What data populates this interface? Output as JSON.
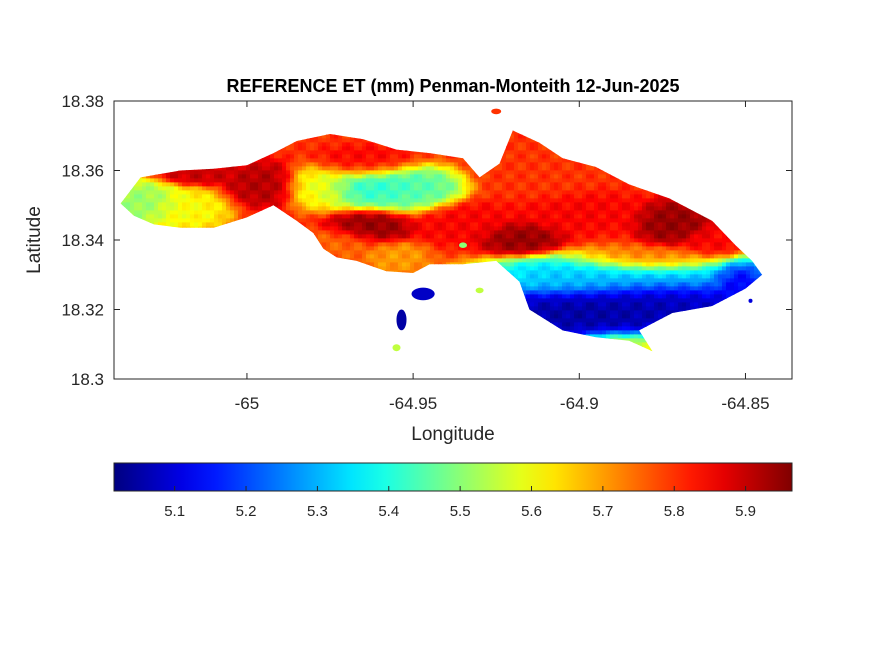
{
  "chart_data": {
    "type": "heatmap",
    "title": "REFERENCE ET (mm) Penman-Monteith 12-Jun-2025",
    "xlabel": "Longitude",
    "ylabel": "Latitude",
    "xlim": [
      -65.04,
      -64.836
    ],
    "ylim": [
      18.3,
      18.38
    ],
    "xticks": [
      -65,
      -64.95,
      -64.9,
      -64.85
    ],
    "xtick_labels": [
      "-65",
      "-64.95",
      "-64.9",
      "-64.85"
    ],
    "yticks": [
      18.3,
      18.32,
      18.34,
      18.36,
      18.38
    ],
    "ytick_labels": [
      "18.3",
      "18.32",
      "18.34",
      "18.36",
      "18.38"
    ],
    "colormap": "jet",
    "colorbar": {
      "orientation": "horizontal",
      "location": "below",
      "clim": [
        5.015,
        5.965
      ],
      "ticks": [
        5.1,
        5.2,
        5.3,
        5.4,
        5.5,
        5.6,
        5.7,
        5.8,
        5.9
      ],
      "tick_labels": [
        "5.1",
        "5.2",
        "5.3",
        "5.4",
        "5.5",
        "5.6",
        "5.7",
        "5.8",
        "5.9"
      ]
    },
    "grid": false,
    "land_outline": [
      [
        -65.038,
        18.3505
      ],
      [
        -65.032,
        18.358
      ],
      [
        -65.02,
        18.36
      ],
      [
        -65.01,
        18.3605
      ],
      [
        -65.0,
        18.3615
      ],
      [
        -64.992,
        18.365
      ],
      [
        -64.985,
        18.3685
      ],
      [
        -64.975,
        18.3705
      ],
      [
        -64.965,
        18.369
      ],
      [
        -64.955,
        18.366
      ],
      [
        -64.945,
        18.365
      ],
      [
        -64.935,
        18.3635
      ],
      [
        -64.93,
        18.358
      ],
      [
        -64.924,
        18.362
      ],
      [
        -64.92,
        18.3715
      ],
      [
        -64.912,
        18.368
      ],
      [
        -64.905,
        18.3635
      ],
      [
        -64.895,
        18.361
      ],
      [
        -64.885,
        18.356
      ],
      [
        -64.873,
        18.352
      ],
      [
        -64.86,
        18.3455
      ],
      [
        -64.853,
        18.3385
      ],
      [
        -64.848,
        18.334
      ],
      [
        -64.845,
        18.33
      ],
      [
        -64.85,
        18.326
      ],
      [
        -64.86,
        18.321
      ],
      [
        -64.872,
        18.319
      ],
      [
        -64.882,
        18.314
      ],
      [
        -64.878,
        18.308
      ],
      [
        -64.885,
        18.311
      ],
      [
        -64.895,
        18.312
      ],
      [
        -64.905,
        18.314
      ],
      [
        -64.915,
        18.32
      ],
      [
        -64.918,
        18.328
      ],
      [
        -64.925,
        18.334
      ],
      [
        -64.935,
        18.333
      ],
      [
        -64.945,
        18.333
      ],
      [
        -64.95,
        18.3305
      ],
      [
        -64.958,
        18.331
      ],
      [
        -64.967,
        18.334
      ],
      [
        -64.973,
        18.335
      ],
      [
        -64.977,
        18.3375
      ],
      [
        -64.98,
        18.342
      ],
      [
        -64.985,
        18.3455
      ],
      [
        -64.992,
        18.35
      ],
      [
        -65.0,
        18.3465
      ],
      [
        -65.01,
        18.3435
      ],
      [
        -65.02,
        18.3435
      ],
      [
        -65.028,
        18.3445
      ],
      [
        -65.034,
        18.347
      ],
      [
        -65.038,
        18.3505
      ]
    ],
    "islets": [
      {
        "center": [
          -64.947,
          18.3245
        ],
        "radius": [
          0.0035,
          0.0018
        ],
        "value": 5.08
      },
      {
        "center": [
          -64.9535,
          18.317
        ],
        "radius": [
          0.0015,
          0.003
        ],
        "value": 5.05
      },
      {
        "center": [
          -64.955,
          18.309
        ],
        "radius": [
          0.0012,
          0.001
        ],
        "value": 5.55
      },
      {
        "center": [
          -64.93,
          18.3255
        ],
        "radius": [
          0.0012,
          0.0008
        ],
        "value": 5.55
      },
      {
        "center": [
          -64.935,
          18.3385
        ],
        "radius": [
          0.0012,
          0.0008
        ],
        "value": 5.5
      },
      {
        "center": [
          -64.925,
          18.377
        ],
        "radius": [
          0.0015,
          0.0008
        ],
        "value": 5.8
      },
      {
        "center": [
          -64.8485,
          18.3225
        ],
        "radius": [
          0.0006,
          0.0006
        ],
        "value": 5.1
      }
    ],
    "value_centers": [
      {
        "lon": -64.9,
        "lat": 18.3185,
        "value": 5.02,
        "spread": [
          0.028,
          0.0055
        ]
      },
      {
        "lon": -64.875,
        "lat": 18.3225,
        "value": 5.05,
        "spread": [
          0.022,
          0.0055
        ]
      },
      {
        "lon": -64.852,
        "lat": 18.3285,
        "value": 5.05,
        "spread": [
          0.006,
          0.0035
        ]
      },
      {
        "lon": -64.88,
        "lat": 18.3295,
        "value": 5.35,
        "spread": [
          0.028,
          0.004
        ]
      },
      {
        "lon": -64.9,
        "lat": 18.3295,
        "value": 5.3,
        "spread": [
          0.018,
          0.0035
        ]
      },
      {
        "lon": -64.888,
        "lat": 18.3095,
        "value": 5.6,
        "spread": [
          0.01,
          0.003
        ]
      },
      {
        "lon": -64.961,
        "lat": 18.3555,
        "value": 5.4,
        "spread": [
          0.012,
          0.004
        ]
      },
      {
        "lon": -64.948,
        "lat": 18.3545,
        "value": 5.45,
        "spread": [
          0.008,
          0.004
        ]
      },
      {
        "lon": -65.032,
        "lat": 18.3505,
        "value": 5.5,
        "spread": [
          0.008,
          0.0045
        ]
      },
      {
        "lon": -65.018,
        "lat": 18.3485,
        "value": 5.6,
        "spread": [
          0.008,
          0.004
        ]
      },
      {
        "lon": -64.978,
        "lat": 18.3555,
        "value": 5.6,
        "spread": [
          0.007,
          0.004
        ]
      },
      {
        "lon": -64.963,
        "lat": 18.3435,
        "value": 5.95,
        "spread": [
          0.008,
          0.003
        ]
      },
      {
        "lon": -64.918,
        "lat": 18.3405,
        "value": 5.95,
        "spread": [
          0.008,
          0.003
        ]
      },
      {
        "lon": -64.872,
        "lat": 18.345,
        "value": 5.95,
        "spread": [
          0.007,
          0.004
        ]
      },
      {
        "lon": -64.995,
        "lat": 18.356,
        "value": 5.92,
        "spread": [
          0.007,
          0.004
        ]
      },
      {
        "lon": -65.015,
        "lat": 18.359,
        "value": 5.9,
        "spread": [
          0.008,
          0.002
        ]
      },
      {
        "lon": -64.935,
        "lat": 18.345,
        "value": 5.85,
        "spread": [
          0.01,
          0.004
        ]
      },
      {
        "lon": -64.965,
        "lat": 18.362,
        "value": 5.85,
        "spread": [
          0.01,
          0.003
        ]
      },
      {
        "lon": -64.9,
        "lat": 18.348,
        "value": 5.85,
        "spread": [
          0.012,
          0.004
        ]
      },
      {
        "lon": -64.88,
        "lat": 18.334,
        "value": 5.78,
        "spread": [
          0.015,
          0.0025
        ]
      },
      {
        "lon": -64.91,
        "lat": 18.357,
        "value": 5.8,
        "spread": [
          0.01,
          0.004
        ]
      },
      {
        "lon": -64.86,
        "lat": 18.339,
        "value": 5.85,
        "spread": [
          0.006,
          0.003
        ]
      },
      {
        "lon": -64.972,
        "lat": 18.339,
        "value": 5.75,
        "spread": [
          0.008,
          0.003
        ]
      },
      {
        "lon": -64.955,
        "lat": 18.335,
        "value": 5.7,
        "spread": [
          0.006,
          0.003
        ]
      }
    ],
    "background_value": 5.8
  }
}
